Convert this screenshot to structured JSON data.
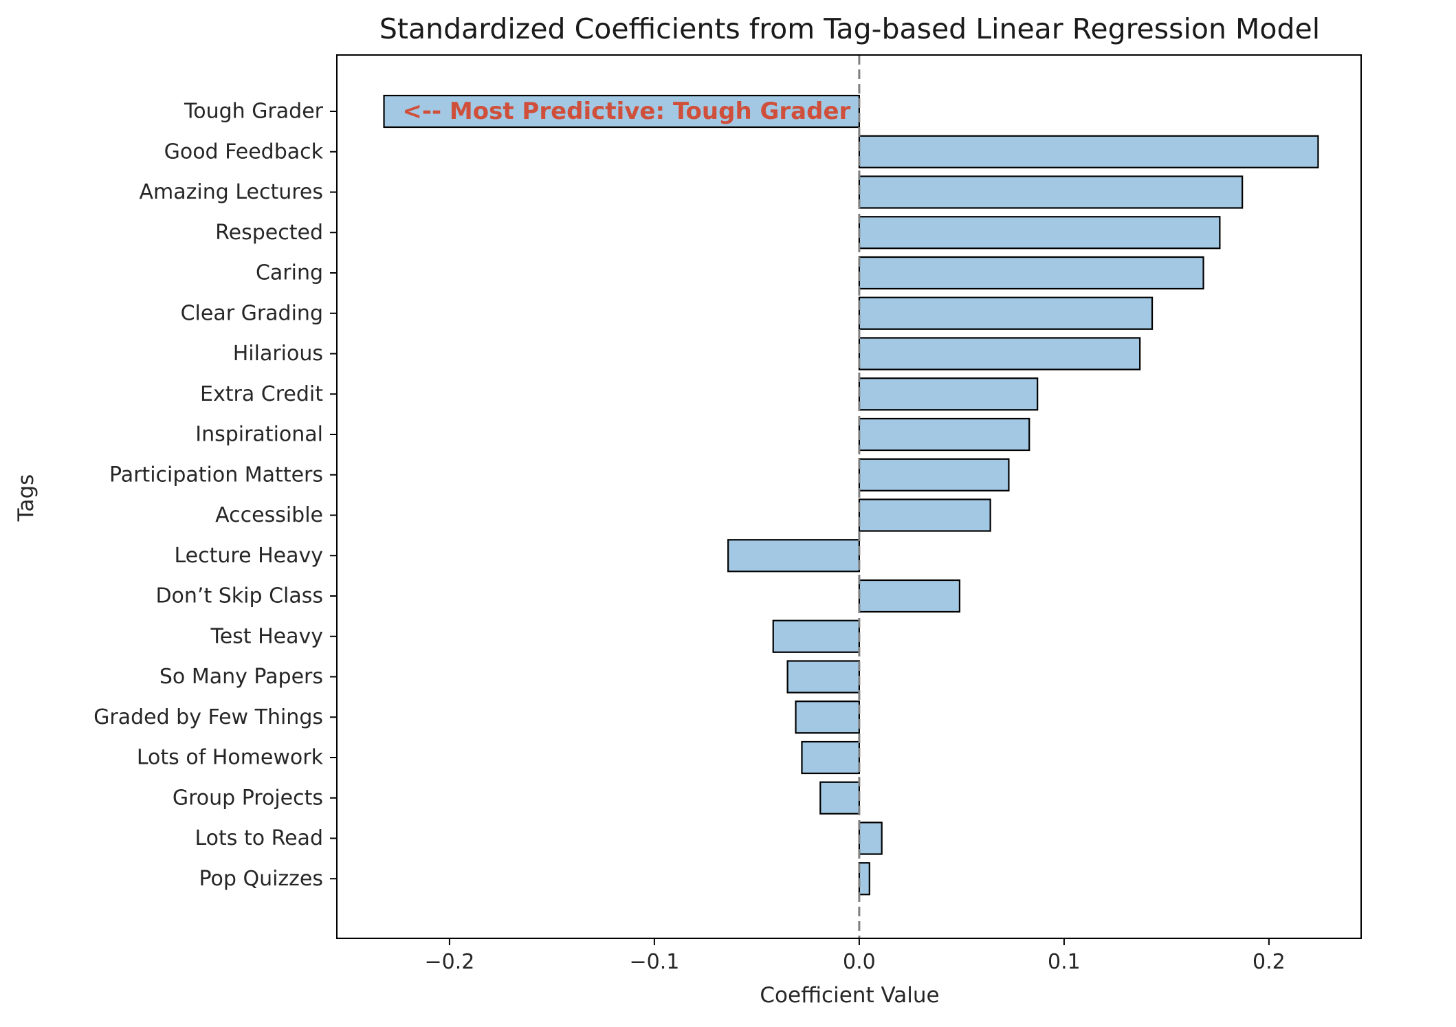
{
  "chart_data": {
    "type": "bar",
    "orientation": "horizontal",
    "title": "Standardized Coefficients from Tag-based Linear Regression Model",
    "xlabel": "Coefficient Value",
    "ylabel": "Tags",
    "xlim": [
      -0.255,
      0.245
    ],
    "xticks": [
      -0.2,
      -0.1,
      0.0,
      0.1,
      0.2
    ],
    "xtick_labels": [
      "−0.2",
      "−0.1",
      "0.0",
      "0.1",
      "0.2"
    ],
    "grid": false,
    "categories": [
      "Tough Grader",
      "Good Feedback",
      "Amazing Lectures",
      "Respected",
      "Caring",
      "Clear Grading",
      "Hilarious",
      "Extra Credit",
      "Inspirational",
      "Participation Matters",
      "Accessible",
      "Lecture Heavy",
      "Don’t Skip Class",
      "Test Heavy",
      "So Many Papers",
      "Graded by Few Things",
      "Lots of Homework",
      "Group Projects",
      "Lots to Read",
      "Pop Quizzes"
    ],
    "values": [
      -0.232,
      0.224,
      0.187,
      0.176,
      0.168,
      0.143,
      0.137,
      0.087,
      0.083,
      0.073,
      0.064,
      -0.064,
      0.049,
      -0.042,
      -0.035,
      -0.031,
      -0.028,
      -0.019,
      0.011,
      0.005
    ],
    "bar_color": "#a2c8e3",
    "bar_edge_color": "#000000",
    "zero_line_color": "#7f7f7f",
    "annotation": {
      "text": "<-- Most Predictive: Tough Grader",
      "color": "#d04f3a",
      "category": "Tough Grader",
      "x": -0.223
    }
  }
}
